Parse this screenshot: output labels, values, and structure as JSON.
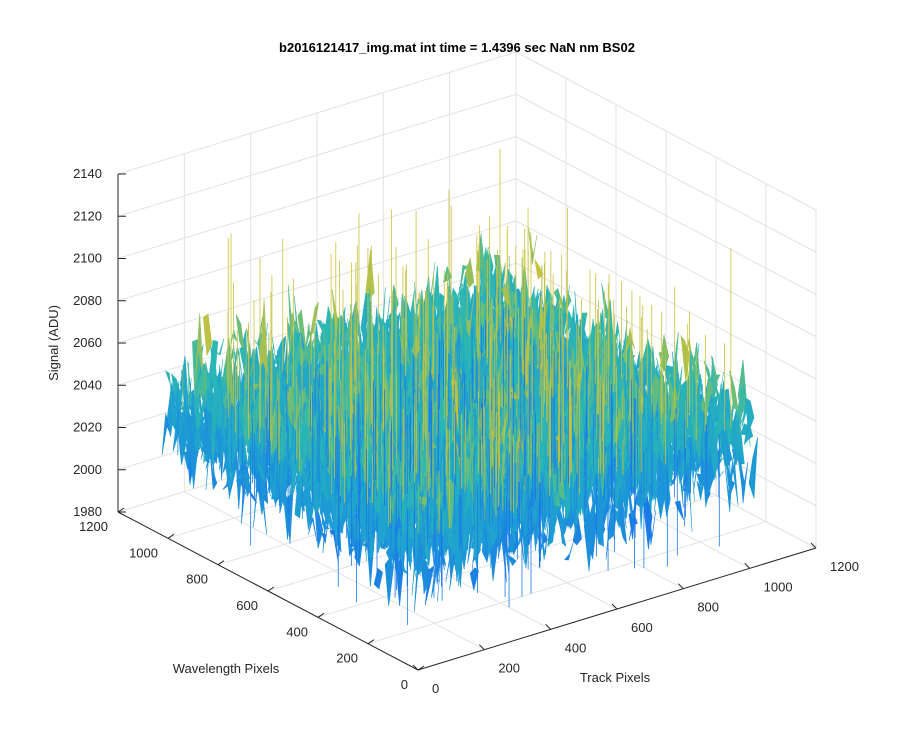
{
  "chart_data": {
    "type": "surface",
    "title": "b2016121417_img.mat int time = 1.4396 sec  NaN nm BS02",
    "xlabel": "Track Pixels",
    "ylabel": "Wavelength Pixels",
    "zlabel": "Signal (ADU)",
    "x_range": [
      0,
      1200
    ],
    "y_range": [
      0,
      1200
    ],
    "z_range": [
      1980,
      2140
    ],
    "x_ticks": [
      "0",
      "200",
      "400",
      "600",
      "800",
      "1000",
      "1200"
    ],
    "y_ticks": [
      "0",
      "200",
      "400",
      "600",
      "800",
      "1000",
      "1200"
    ],
    "z_ticks": [
      "1980",
      "2000",
      "2020",
      "2040",
      "2060",
      "2080",
      "2100",
      "2120",
      "2140"
    ],
    "grid": true,
    "colormap": "parula",
    "data_extent": {
      "x": [
        0,
        1024
      ],
      "y": [
        0,
        1024
      ]
    },
    "signal_mean": 2040,
    "signal_spread": 18,
    "signal_min_approx": 1985,
    "signal_max_approx": 2125,
    "colors": {
      "low": "#1a77e8",
      "mid": "#2ab7b4",
      "high": "#c9c23d",
      "axis": "#262626",
      "grid": "#e2e2e2"
    }
  }
}
